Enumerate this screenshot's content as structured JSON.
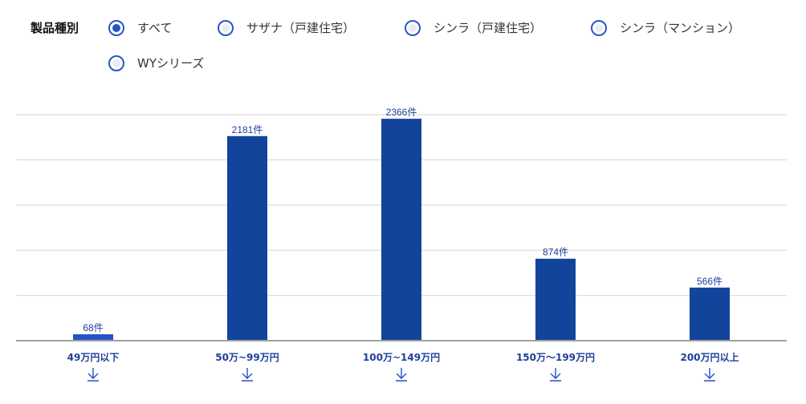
{
  "filter": {
    "label": "製品種別",
    "options": [
      {
        "label": "すべて",
        "selected": true
      },
      {
        "label": "サザナ（戸建住宅）",
        "selected": false
      },
      {
        "label": "シンラ（戸建住宅）",
        "selected": false
      },
      {
        "label": "シンラ（マンション）",
        "selected": false
      },
      {
        "label": "WYシリーズ",
        "selected": false
      }
    ]
  },
  "chart_data": {
    "type": "bar",
    "categories": [
      "49万円以下",
      "50万~99万円",
      "100万~149万円",
      "150万～199万円",
      "200万円以上"
    ],
    "values": [
      68,
      2181,
      2366,
      874,
      566
    ],
    "data_labels": [
      "68件",
      "2181件",
      "2366件",
      "874件",
      "566件"
    ],
    "ylim": [
      0,
      2410
    ],
    "grid": true,
    "colors": {
      "bar": "#13449b",
      "highlight_bar": "#2451c8",
      "grid": "#d6d6d6",
      "axis": "#a0a0a0",
      "label": "#1f3f9a"
    },
    "highlighted_index": 0
  },
  "download_icon": "download-arrow-icon"
}
